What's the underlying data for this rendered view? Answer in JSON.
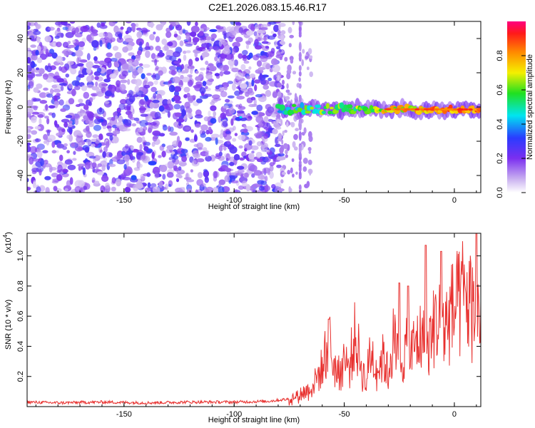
{
  "title": "C2E1.2026.083.15.46.R17",
  "chart_data": [
    {
      "type": "heatmap",
      "name": "spectrogram",
      "xlabel": "Height of straight line (km)",
      "ylabel": "Frequency (Hz)",
      "xlim": [
        -194,
        12
      ],
      "ylim": [
        -50,
        50
      ],
      "xticks": [
        -150,
        -100,
        -50,
        0
      ],
      "yticks": [
        -40,
        -20,
        0,
        20,
        40
      ],
      "colorbar": {
        "label": "Normalized spectral amplitude",
        "range": [
          0,
          1
        ],
        "ticks": [
          0.0,
          0.2,
          0.4,
          0.6,
          0.8
        ]
      },
      "signal_band": {
        "x_start": -80,
        "x_end": 12,
        "center_frequency_start": -1,
        "center_frequency_end": -1.5,
        "peak_amplitude": 0.9
      },
      "noise_region": {
        "x_start": -194,
        "x_end": -80,
        "amplitude": [
          0.05,
          0.35
        ]
      }
    },
    {
      "type": "line",
      "name": "snr",
      "xlabel": "Height of straight line (km)",
      "ylabel": "SNR (10 * v/v)",
      "multiplier_label": "(x10",
      "multiplier_exp": "4",
      "xlim": [
        -194,
        12
      ],
      "ylim": [
        0,
        1.15
      ],
      "xticks": [
        -150,
        -100,
        -50,
        0
      ],
      "yticks": [
        0.2,
        0.4,
        0.6,
        0.8,
        1.0
      ],
      "series": [
        {
          "name": "SNR",
          "color": "#e8312f",
          "x": [
            -194,
            -180,
            -160,
            -140,
            -120,
            -100,
            -85,
            -75,
            -70,
            -65,
            -60,
            -57,
            -55,
            -52,
            -50,
            -48,
            -45,
            -42,
            -40,
            -38,
            -35,
            -32,
            -30,
            -28,
            -25,
            -22,
            -20,
            -18,
            -15,
            -12,
            -10,
            -8,
            -5,
            -3,
            0,
            2,
            4,
            6,
            8,
            10,
            12
          ],
          "values": [
            0.03,
            0.025,
            0.03,
            0.025,
            0.03,
            0.03,
            0.035,
            0.05,
            0.1,
            0.15,
            0.3,
            0.55,
            0.35,
            0.25,
            0.4,
            0.3,
            0.55,
            0.3,
            0.2,
            0.45,
            0.3,
            0.4,
            0.25,
            0.55,
            0.35,
            0.45,
            0.4,
            0.5,
            0.55,
            0.45,
            0.6,
            0.7,
            0.62,
            0.7,
            0.78,
            0.8,
            0.88,
            0.85,
            0.8,
            0.72,
            0.78
          ]
        }
      ],
      "spikes": [
        {
          "x": -57,
          "value": 0.58
        },
        {
          "x": -25,
          "value": 0.82
        },
        {
          "x": -21,
          "value": 0.8
        },
        {
          "x": -13,
          "value": 1.07
        },
        {
          "x": -6,
          "value": 1.03
        },
        {
          "x": 10,
          "value": 1.16
        }
      ]
    }
  ]
}
